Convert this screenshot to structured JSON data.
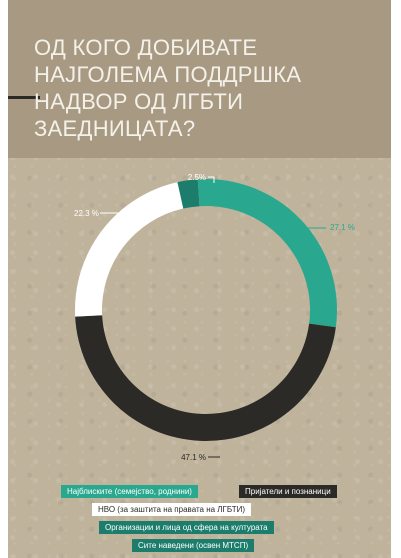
{
  "title": "ОД КОГО ДОБИВАТЕ НАЈГОЛЕМА ПОДДРШКА НАДВОР ОД ЛГБТИ ЗАЕДНИЦАТА?",
  "colors": {
    "teal": "#2aa88f",
    "dark": "#2b2a26",
    "white": "#ffffff",
    "deep_teal": "#1d7d6d"
  },
  "chart_data": {
    "type": "pie",
    "style": "donut",
    "title": "ОД КОГО ДОБИВАТЕ НАЈГОЛЕМА ПОДДРШКА НАДВОР ОД ЛГБТИ ЗАЕДНИЦАТА?",
    "slices": [
      {
        "name": "Најблиските (семејство, роднини)",
        "value": 27.1,
        "label": "27.1 %",
        "color": "#2aa88f"
      },
      {
        "name": "Пријатели и познаници",
        "value": 47.1,
        "label": "47.1 %",
        "color": "#2b2a26"
      },
      {
        "name": "НВО (за заштита на правата на ЛГБТИ)",
        "value": 22.3,
        "label": "22.3 %",
        "color": "#ffffff"
      },
      {
        "name": "Организации и лица од сфера на културата",
        "value": 2.5,
        "label": "2.5%",
        "color": "#1d7d6d"
      },
      {
        "name": "Сите наведени (освен МТСП)",
        "value": 1.0,
        "label": "",
        "color": "#2aa88f"
      }
    ],
    "legend_position": "bottom"
  },
  "legend": [
    {
      "label": "Најблиските (семејство, роднини)",
      "bg": "#2aa88f",
      "fg": "#ffffff"
    },
    {
      "label": "Пријатели и познаници",
      "bg": "#2b2a26",
      "fg": "#ffffff"
    },
    {
      "label": "НВО (за заштита на правата на ЛГБТИ)",
      "bg": "#ffffff",
      "fg": "#2b2a26"
    },
    {
      "label": "Организации и лица од сфера на културата",
      "bg": "#1d7d6d",
      "fg": "#ffffff"
    },
    {
      "label": "Сите наведени (освен МТСП)",
      "bg": "#1d7d6d",
      "fg": "#ffffff"
    }
  ]
}
